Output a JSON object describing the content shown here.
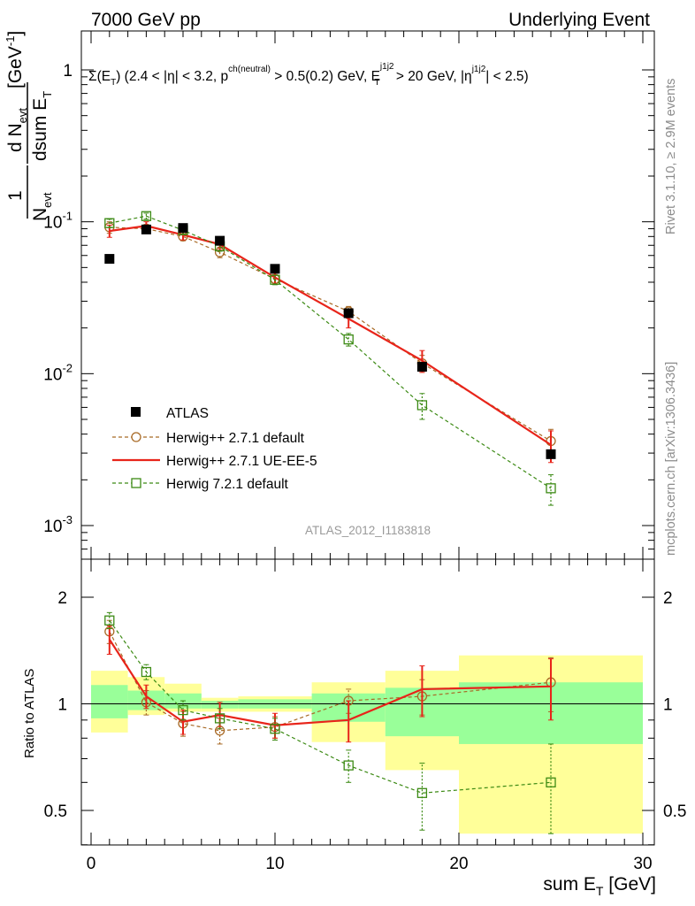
{
  "header": {
    "left": "7000 GeV pp",
    "right": "Underlying Event"
  },
  "side_labels": {
    "rivet": "Rivet 3.1.10, ≥ 2.9M events",
    "mcplots": "mcplots.cern.ch [arXiv:1306.3436]"
  },
  "analysis_id": "ATLAS_2012_I1183818",
  "selection_text": {
    "part1": "Σ(E",
    "sub1": "T",
    "part2": ") (2.4 < |η| < 3.2, p",
    "sup1": "ch(neutral)",
    "part3": " > 0.5(0.2) GeV, E",
    "sup2": "j1j2",
    "sub2": "T",
    "part4": " > 20 GeV, |η",
    "sup3": "j1j2",
    "part5": "| < 2.5)"
  },
  "y_axis_label": {
    "one": "1",
    "n_evt": "N",
    "n_evt_sub": "evt",
    "d_n": "d N",
    "d_n_sub": "evt",
    "dsum": "dsum E",
    "dsum_sub": "T",
    "unit": "[GeV",
    "unit_sup": "-1",
    "unit_close": "]"
  },
  "ratio_ylabel": "Ratio to ATLAS",
  "x_axis_label": {
    "main": "sum E",
    "sub": "T",
    "unit": " [GeV]"
  },
  "chart_data": [
    {
      "type": "scatter",
      "title": "",
      "xlabel": "sum E_T [GeV]",
      "ylabel": "1/N_evt dN_evt/dsum E_T [GeV^-1]",
      "xlim": [
        0,
        30
      ],
      "ylim": [
        0.0008,
        2.0
      ],
      "log_y": true,
      "x_ticks": [
        "0",
        "10",
        "20",
        "30"
      ],
      "y_ticks": [
        {
          "base": "10",
          "exp": "-3",
          "value": 0.001
        },
        {
          "base": "10",
          "exp": "-2",
          "value": 0.01
        },
        {
          "base": "10",
          "exp": "-1",
          "value": 0.1
        },
        {
          "base": "1",
          "exp": "",
          "value": 1
        }
      ],
      "legend_position": "bottom-left",
      "series": [
        {
          "name": "ATLAS",
          "style": "data",
          "color": "#000000",
          "x": [
            1,
            3,
            5,
            7,
            10,
            14,
            18,
            25
          ],
          "y": [
            0.057,
            0.089,
            0.091,
            0.075,
            0.049,
            0.025,
            0.0111,
            0.00295
          ],
          "yerr": [
            0.001,
            0.001,
            0.001,
            0.001,
            0.001,
            0.0005,
            0.0003,
            0.0001
          ]
        },
        {
          "name": "Herwig++ 2.7.1 default",
          "style": "circle-dashed",
          "color": "#a86a26",
          "x": [
            1,
            3,
            5,
            7,
            10,
            14,
            18,
            25
          ],
          "y": [
            0.092,
            0.09,
            0.08,
            0.063,
            0.042,
            0.0257,
            0.0117,
            0.0036
          ],
          "yerr": [
            0.008,
            0.006,
            0.005,
            0.005,
            0.003,
            0.002,
            0.0015,
            0.0007
          ]
        },
        {
          "name": "Herwig++ 2.7.1 UE-EE-5",
          "style": "solid",
          "color": "#e8241a",
          "x": [
            1,
            3,
            5,
            7,
            10,
            14,
            18,
            25
          ],
          "y": [
            0.087,
            0.094,
            0.082,
            0.071,
            0.043,
            0.023,
            0.0122,
            0.0034
          ],
          "yerr": [
            0.008,
            0.006,
            0.006,
            0.006,
            0.004,
            0.003,
            0.002,
            0.0008
          ]
        },
        {
          "name": "Herwig 7.2.1 default",
          "style": "square-dashed",
          "color": "#3c8a14",
          "x": [
            1,
            3,
            5,
            7,
            10,
            14,
            18,
            25
          ],
          "y": [
            0.098,
            0.109,
            0.088,
            0.069,
            0.0415,
            0.0168,
            0.0062,
            0.00176
          ],
          "yerr": [
            0.006,
            0.005,
            0.005,
            0.005,
            0.003,
            0.0016,
            0.0012,
            0.0004
          ]
        }
      ]
    },
    {
      "type": "scatter",
      "title": "",
      "xlabel": "sum E_T [GeV]",
      "ylabel": "Ratio to ATLAS",
      "xlim": [
        0,
        30
      ],
      "ylim": [
        0.35,
        2.3
      ],
      "x_ticks": [
        "0",
        "10",
        "20",
        "30"
      ],
      "y_ticks": [
        "0.5",
        "1",
        "2"
      ],
      "bands": {
        "bin_edges": [
          0,
          2,
          4,
          6,
          8,
          12,
          16,
          20,
          30
        ],
        "yellow_lo": [
          0.83,
          0.93,
          0.95,
          0.95,
          0.95,
          0.78,
          0.65,
          0.43
        ],
        "yellow_hi": [
          1.24,
          1.19,
          1.14,
          1.04,
          1.05,
          1.15,
          1.24,
          1.37
        ],
        "green_lo": [
          0.91,
          0.96,
          0.97,
          0.97,
          0.97,
          0.89,
          0.81,
          0.77
        ],
        "green_hi": [
          1.13,
          1.09,
          1.07,
          1.02,
          1.03,
          1.07,
          1.11,
          1.15
        ],
        "yellow_color": "#ffff99",
        "green_color": "#99ff99"
      },
      "series": [
        {
          "name": "Herwig++ 2.7.1 default",
          "style": "circle-dashed",
          "color": "#a86a26",
          "x": [
            1,
            3,
            5,
            7,
            10,
            14,
            18,
            25
          ],
          "y": [
            1.6,
            1.01,
            0.88,
            0.84,
            0.86,
            1.02,
            1.05,
            1.15
          ],
          "yerr": [
            0.12,
            0.08,
            0.07,
            0.07,
            0.06,
            0.08,
            0.12,
            0.2
          ]
        },
        {
          "name": "Herwig++ 2.7.1 UE-EE-5",
          "style": "solid",
          "color": "#e8241a",
          "x": [
            1,
            3,
            5,
            7,
            10,
            14,
            18,
            25
          ],
          "y": [
            1.52,
            1.05,
            0.89,
            0.93,
            0.87,
            0.9,
            1.1,
            1.12
          ],
          "yerr": [
            0.14,
            0.08,
            0.07,
            0.08,
            0.07,
            0.12,
            0.18,
            0.22
          ]
        },
        {
          "name": "Herwig 7.2.1 default",
          "style": "square-dashed",
          "color": "#3c8a14",
          "x": [
            1,
            3,
            5,
            7,
            10,
            14,
            18,
            25
          ],
          "y": [
            1.72,
            1.23,
            0.96,
            0.91,
            0.85,
            0.67,
            0.56,
            0.6
          ],
          "yerr": [
            0.09,
            0.06,
            0.06,
            0.06,
            0.06,
            0.07,
            0.12,
            0.17
          ]
        }
      ]
    }
  ]
}
